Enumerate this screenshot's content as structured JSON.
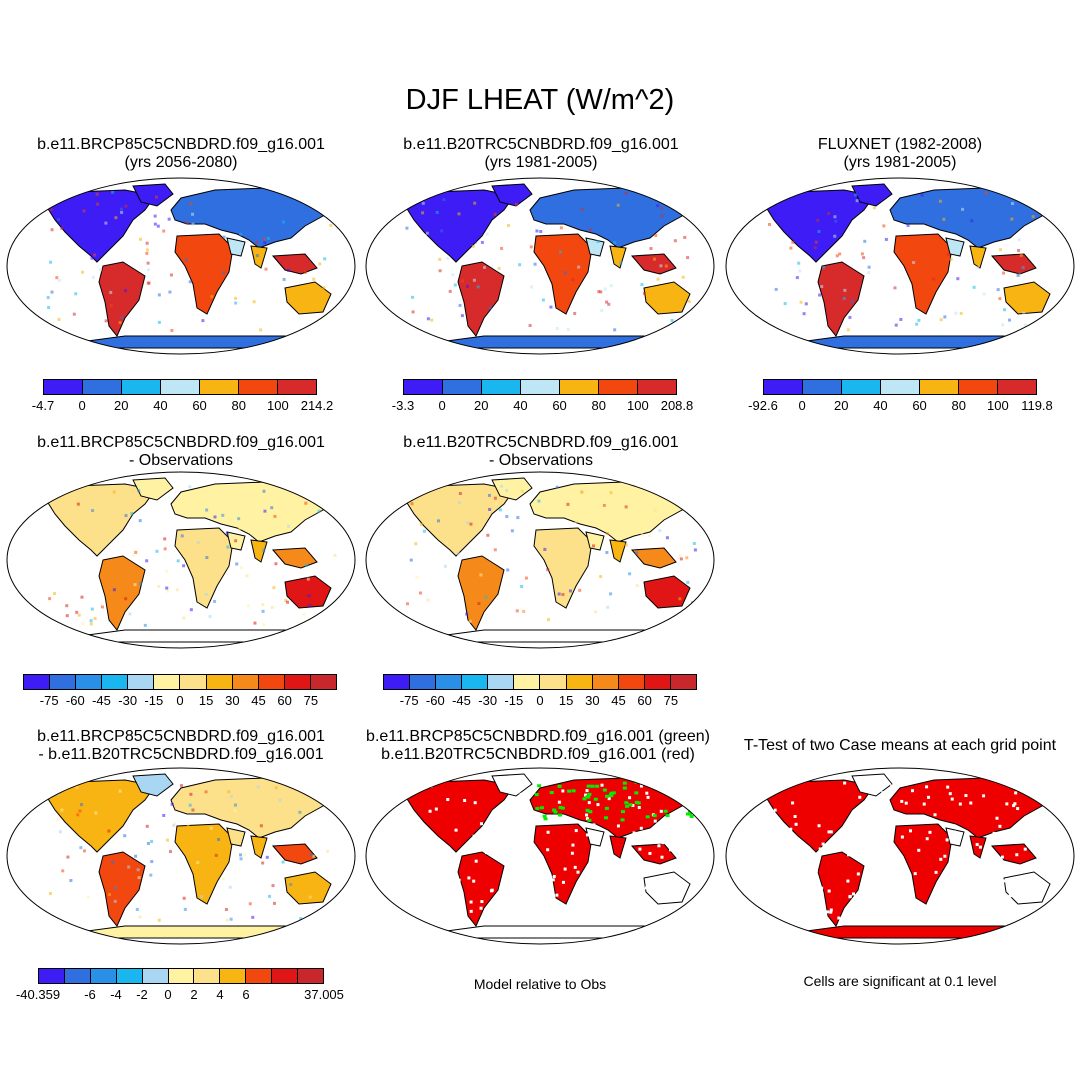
{
  "title": "DJF LHEAT (W/m^2)",
  "colors": {
    "abs": [
      "#3d1cf5",
      "#2f6fe0",
      "#1ab6f0",
      "#bfe6f5",
      "#f8b412",
      "#f2470f",
      "#d72b2b"
    ],
    "diff": [
      "#3d1cf5",
      "#2f6fe0",
      "#2a8fe6",
      "#1ab6f0",
      "#a9d6f2",
      "#fff3a3",
      "#fde08a",
      "#f8b412",
      "#f58a1a",
      "#f2470f",
      "#e01515",
      "#c8282b"
    ],
    "rel": [
      "#3d1cf5",
      "#2f6fe0",
      "#2a8fe6",
      "#1ab6f0",
      "#a9d6f2",
      "#fff3a3",
      "#fde08a",
      "#f8b412",
      "#f2470f",
      "#e01515",
      "#c8282b"
    ],
    "land": "#ffffff",
    "ocean": "#ffffff",
    "sig_red": "#ee0000",
    "sig_green": "#00ee00"
  },
  "panels": [
    {
      "id": "p1",
      "title": [
        "b.e11.BRCP85C5CNBDRD.f09_g16.001",
        "(yrs 2056-2080)"
      ],
      "scheme": "abs",
      "labels": [
        "-4.7",
        "0",
        "20",
        "40",
        "60",
        "80",
        "100",
        "214.2"
      ]
    },
    {
      "id": "p2",
      "title": [
        "b.e11.B20TRC5CNBDRD.f09_g16.001",
        "(yrs 1981-2005)"
      ],
      "scheme": "abs",
      "labels": [
        "-3.3",
        "0",
        "20",
        "40",
        "60",
        "80",
        "100",
        "208.8"
      ]
    },
    {
      "id": "p3",
      "title": [
        "FLUXNET (1982-2008)",
        "(yrs 1981-2005)"
      ],
      "scheme": "abs",
      "labels": [
        "-92.6",
        "0",
        "20",
        "40",
        "60",
        "80",
        "100",
        "119.8"
      ]
    },
    {
      "id": "p4",
      "title": [
        "b.e11.BRCP85C5CNBDRD.f09_g16.001",
        "- Observations"
      ],
      "scheme": "diff",
      "labels": [
        "-75",
        "-60",
        "-45",
        "-30",
        "-15",
        "0",
        "15",
        "30",
        "45",
        "60",
        "75"
      ]
    },
    {
      "id": "p5",
      "title": [
        "b.e11.B20TRC5CNBDRD.f09_g16.001",
        "- Observations"
      ],
      "scheme": "diff",
      "labels": [
        "-75",
        "-60",
        "-45",
        "-30",
        "-15",
        "0",
        "15",
        "30",
        "45",
        "60",
        "75"
      ]
    },
    {
      "id": "p6",
      "title": [
        "b.e11.BRCP85C5CNBDRD.f09_g16.001",
        "- b.e11.B20TRC5CNBDRD.f09_g16.001"
      ],
      "scheme": "rel",
      "labels": [
        "-40.359",
        "-6",
        "-4",
        "-2",
        "0",
        "2",
        "4",
        "6",
        "37.005"
      ]
    },
    {
      "id": "p7",
      "title": [
        "b.e11.BRCP85C5CNBDRD.f09_g16.001 (green)",
        "b.e11.B20TRC5CNBDRD.f09_g16.001 (red)"
      ],
      "scheme": "sig2",
      "note": "Model relative to Obs"
    },
    {
      "id": "p8",
      "title": [
        "T-Test of two Case means at each grid point"
      ],
      "scheme": "sig1",
      "note": "Cells are significant at 0.1 level"
    }
  ]
}
